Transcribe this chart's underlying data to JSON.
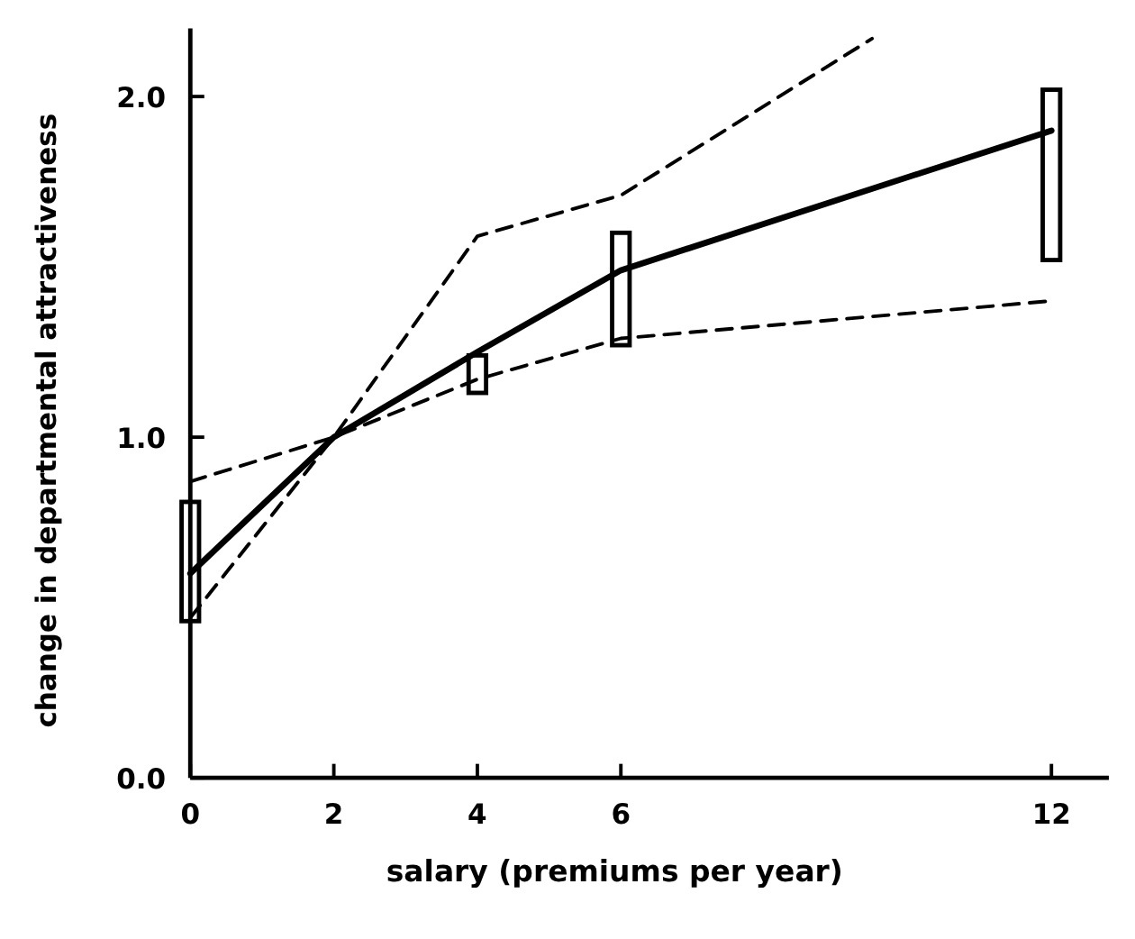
{
  "chart_data": {
    "type": "line",
    "xlabel": "salary (premiums per year)",
    "ylabel": "change in departmental attractiveness",
    "xlim": [
      0,
      12.8
    ],
    "xticks": [
      0,
      2,
      4,
      6,
      12
    ],
    "ylim": [
      0,
      2.2
    ],
    "yticks": [
      {
        "value": 0,
        "label": "0.0"
      },
      {
        "value": 1,
        "label": "1.0"
      },
      {
        "value": 2,
        "label": "2.0"
      }
    ],
    "grid": false,
    "marker": "none",
    "series": [
      {
        "type": "bar",
        "color": "#000000",
        "x": [
          0,
          4,
          6,
          12
        ],
        "base": [
          0.46,
          1.13,
          1.27,
          1.52
        ],
        "values": [
          0.35,
          0.11,
          0.33,
          0.5
        ]
      },
      {
        "color": "#000000",
        "line_style": "solid",
        "x": [
          0,
          2,
          4,
          6,
          12
        ],
        "values": [
          0.6,
          1.0,
          1.25,
          1.49,
          1.9
        ]
      },
      {
        "color": "#000000",
        "line_style": "dashed",
        "x": [
          0,
          2,
          4,
          6,
          9.5
        ],
        "values": [
          0.47,
          1.0,
          1.59,
          1.71,
          2.17
        ]
      },
      {
        "color": "#000000",
        "line_style": "dashed",
        "x": [
          0,
          2,
          4,
          6,
          12
        ],
        "values": [
          0.87,
          1.0,
          1.17,
          1.29,
          1.4
        ]
      }
    ]
  }
}
